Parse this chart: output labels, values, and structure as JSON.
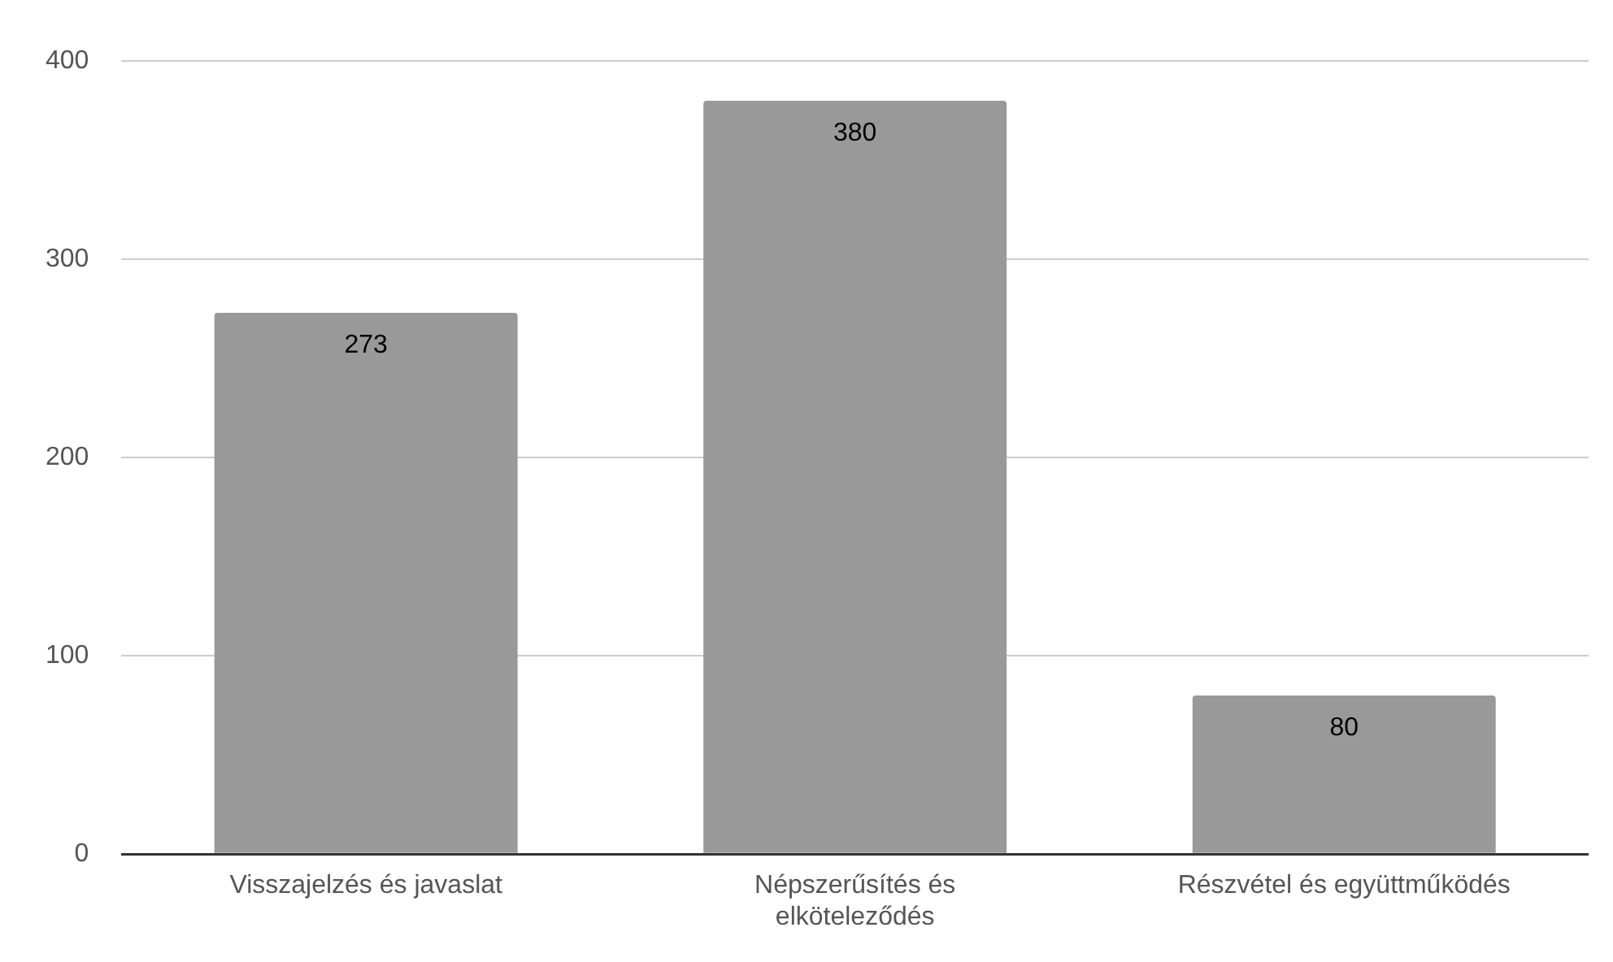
{
  "chart_data": {
    "type": "bar",
    "categories": [
      "Visszajelzés és javaslat",
      "Népszerűsítés és elköteleződés",
      "Részvétel és együttműködés"
    ],
    "values": [
      273,
      380,
      80
    ],
    "color": "#999999",
    "ylim": [
      0,
      400
    ],
    "yticks": [
      0,
      100,
      200,
      300,
      400
    ],
    "grid": "y",
    "data_labels": true,
    "legend": false
  }
}
